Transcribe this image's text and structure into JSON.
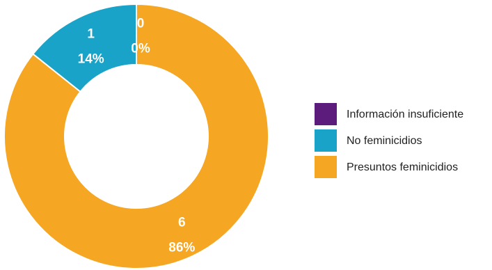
{
  "chart_data": {
    "type": "pie",
    "donut": true,
    "categories": [
      "Información insuficiente",
      "No feminicidios",
      "Presuntos feminicidios"
    ],
    "values": [
      0,
      1,
      6
    ],
    "percent_labels": [
      "0%",
      "14%",
      "86%"
    ],
    "colors": [
      "#5b1c7b",
      "#1aa3c8",
      "#f5a623"
    ],
    "title": "",
    "legend_position": "right"
  }
}
